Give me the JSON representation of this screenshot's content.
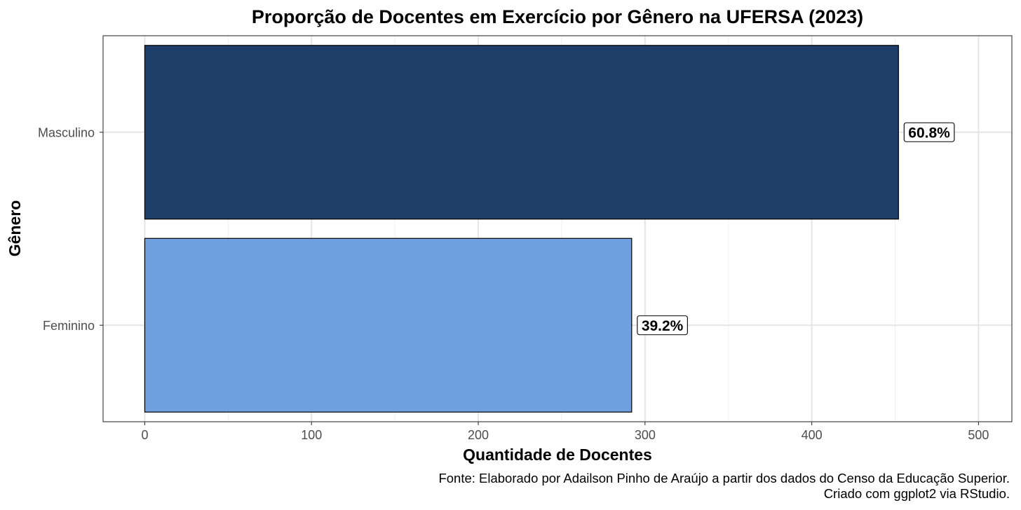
{
  "chart_data": {
    "type": "bar",
    "orientation": "horizontal",
    "title": "Proporção de Docentes em Exercício por Gênero na UFERSA (2023)",
    "xlabel": "Quantidade de Docentes",
    "ylabel": "Gênero",
    "categories": [
      "Masculino",
      "Feminino"
    ],
    "values": [
      452,
      292
    ],
    "data_labels": [
      "60.8%",
      "39.2%"
    ],
    "colors": [
      "#1f3f6b",
      "#71a0e0"
    ],
    "xlim": [
      -25,
      520
    ],
    "xticks": [
      0,
      100,
      200,
      300,
      400,
      500
    ],
    "grid": true,
    "legend": "none",
    "caption": [
      "Fonte: Elaborado por Adailson Pinho de Araújo a partir dos dados do Censo da Educação Superior.",
      "Criado com ggplot2 via RStudio."
    ]
  }
}
